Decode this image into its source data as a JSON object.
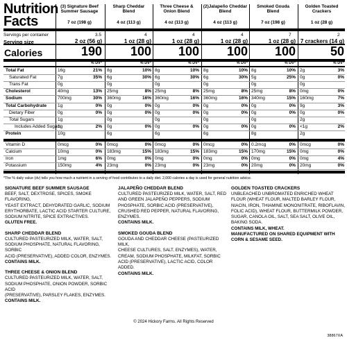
{
  "header": {
    "title": "Nutrition Facts",
    "servings_label": "Servings per container",
    "serving_size_label": "Serving size",
    "dv_label": "% DV*"
  },
  "columns": [
    {
      "name": "(3) Signature Beef Summer Sausage",
      "net": "7 oz (198 g)",
      "servings": "3.5",
      "size": "2 oz (56 g)",
      "calories": "190"
    },
    {
      "name": "Sharp Cheddar Blend",
      "net": "4 oz (113 g)",
      "servings": "4",
      "size": "1 oz (28 g)",
      "calories": "100"
    },
    {
      "name": "Three Cheese & Onion Blend",
      "net": "4 oz (113 g)",
      "servings": "4",
      "size": "1 oz (28 g)",
      "calories": "100"
    },
    {
      "name": "(2)Jalapeño Cheddar Blend",
      "net": "4 oz (113 g)",
      "servings": "4",
      "size": "1 oz (28 g)",
      "calories": "100"
    },
    {
      "name": "Smoked Gouda Blend",
      "net": "7 oz (198 g)",
      "servings": "7",
      "size": "1 oz (28 g)",
      "calories": "100"
    },
    {
      "name": "Golden Toasted Crackers",
      "net": "1 oz (28 g)",
      "servings": "2",
      "size": "7 crackers (14 g)",
      "calories": "50"
    }
  ],
  "calories_label": "Calories",
  "nutrients": [
    {
      "label": "Total Fat",
      "bold": true,
      "vals": [
        [
          "16g",
          "21%"
        ],
        [
          "8g",
          "10%"
        ],
        [
          "8g",
          "10%"
        ],
        [
          "8g",
          "10%"
        ],
        [
          "8g",
          "10%"
        ],
        [
          "2g",
          "3%"
        ]
      ]
    },
    {
      "label": "Saturated Fat",
      "bold": false,
      "vals": [
        [
          "7g",
          "35%"
        ],
        [
          "6g",
          "30%"
        ],
        [
          "6g",
          "30%"
        ],
        [
          "6g",
          "30%"
        ],
        [
          "5g",
          "25%"
        ],
        [
          "0g",
          "0%"
        ]
      ]
    },
    {
      "label": "Trans Fat",
      "bold": false,
      "vals": [
        [
          "0g",
          ""
        ],
        [
          "0g",
          ""
        ],
        [
          "0g",
          ""
        ],
        [
          "0g",
          ""
        ],
        [
          "0g",
          ""
        ],
        [
          "0g",
          ""
        ]
      ]
    },
    {
      "label": "Cholesterol",
      "bold": true,
      "vals": [
        [
          "40mg",
          "13%"
        ],
        [
          "25mg",
          "8%"
        ],
        [
          "25mg",
          "8%"
        ],
        [
          "25mg",
          "8%"
        ],
        [
          "25mg",
          "8%"
        ],
        [
          "0mg",
          "0%"
        ]
      ]
    },
    {
      "label": "Sodium",
      "bold": true,
      "vals": [
        [
          "700mg",
          "30%"
        ],
        [
          "360mg",
          "16%"
        ],
        [
          "360mg",
          "16%"
        ],
        [
          "360mg",
          "16%"
        ],
        [
          "340mg",
          "15%"
        ],
        [
          "160mg",
          "7%"
        ]
      ]
    },
    {
      "label": "Total Carbohydrate",
      "bold": true,
      "vals": [
        [
          "1g",
          "0%"
        ],
        [
          "0g",
          "0%"
        ],
        [
          "0g",
          "0%"
        ],
        [
          "0g",
          "0%"
        ],
        [
          "0g",
          "0%"
        ],
        [
          "9g",
          "3%"
        ]
      ]
    },
    {
      "label": "Dietary Fiber",
      "bold": false,
      "vals": [
        [
          "0g",
          "0%"
        ],
        [
          "0g",
          "0%"
        ],
        [
          "0g",
          "0%"
        ],
        [
          "0g",
          "0%"
        ],
        [
          "0g",
          "0%"
        ],
        [
          "0g",
          "0%"
        ]
      ]
    },
    {
      "label": "Total Sugars",
      "bold": false,
      "vals": [
        [
          "1g",
          ""
        ],
        [
          "0g",
          ""
        ],
        [
          "0g",
          ""
        ],
        [
          "0g",
          ""
        ],
        [
          "0g",
          ""
        ],
        [
          "2g",
          ""
        ]
      ]
    },
    {
      "label": "Includes Added Sugars",
      "bold": false,
      "vals": [
        [
          "1g",
          "2%"
        ],
        [
          "0g",
          "0%"
        ],
        [
          "0g",
          "0%"
        ],
        [
          "0g",
          "0%"
        ],
        [
          "0g",
          "0%"
        ],
        [
          "<1g",
          "2%"
        ]
      ]
    },
    {
      "label": "Protein",
      "bold": true,
      "vals": [
        [
          "10g",
          ""
        ],
        [
          "6g",
          ""
        ],
        [
          "6g",
          ""
        ],
        [
          "6g",
          ""
        ],
        [
          "8g",
          ""
        ],
        [
          "2g",
          ""
        ]
      ]
    },
    {
      "label": "Vitamin D",
      "bold": false,
      "vals": [
        [
          "0mcg",
          "0%"
        ],
        [
          "0mcg",
          "0%"
        ],
        [
          "0mcg",
          "0%"
        ],
        [
          "0mcg",
          "0%"
        ],
        [
          "0.2mcg",
          "0%"
        ],
        [
          "0mcg",
          "0%"
        ]
      ]
    },
    {
      "label": "Calcium",
      "bold": false,
      "vals": [
        [
          "10mg",
          "0%"
        ],
        [
          "183mg",
          "15%"
        ],
        [
          "183mg",
          "15%"
        ],
        [
          "183mg",
          "15%"
        ],
        [
          "170mg",
          "15%"
        ],
        [
          "0mg",
          "0%"
        ]
      ]
    },
    {
      "label": "Iron",
      "bold": false,
      "vals": [
        [
          "1mg",
          "6%"
        ],
        [
          "0mg",
          "0%"
        ],
        [
          "0mg",
          "0%"
        ],
        [
          "0mg",
          "0%"
        ],
        [
          "0mg",
          "0%"
        ],
        [
          "0mg",
          "4%"
        ]
      ]
    },
    {
      "label": "Potassium",
      "bold": false,
      "vals": [
        [
          "150mg",
          "4%"
        ],
        [
          "23mg",
          "0%"
        ],
        [
          "23mg",
          "0%"
        ],
        [
          "23mg",
          "0%"
        ],
        [
          "20mg",
          "0%"
        ],
        [
          "20mg",
          "0%"
        ]
      ]
    }
  ],
  "footnote": "*The % daily value (dv) tells you how much a nutrient in a serving of food contributes to a daily diet. 2,000 calories a day is used for general nutrition advice.",
  "ingredients": {
    "sausage": {
      "title": "SIGNATURE BEEF SUMMER SAUSAGE",
      "lines": [
        "BEEF, SALT, DEXTROSE, SPICES, SMOKE FLAVORING,",
        "YEAST EXTRACT, DEHYDRATED GARLIC, SODIUM",
        "ERYTHORBATE, LACTIC ACID STARTER CULTURE,",
        "SODIUM NITRITE, SPICE EXTRACTIVES."
      ],
      "note": "GLUTEN FREE."
    },
    "sharp": {
      "title": "SHARP CHEDDAR BLEND",
      "lines": [
        "CULTURED PASTEURIZED MILK, WATER, SALT,",
        "SODIUM PHOSPHATE, NATURAL FLAVORING, SORBIC",
        "ACID (PRESERVATIVE), ADDED COLOR, ENZYMES."
      ],
      "note": "CONTAINS MILK."
    },
    "three": {
      "title": "THREE CHEESE & ONION BLEND",
      "lines": [
        "CULTURED PASTEURIZED MILK, WATER, SALT,",
        "SODIUM PHOSPHATE, ONION POWDER, SORBIC ACID",
        "(PRESERVATIVE), PARSLEY FLAKES, ENZYMES."
      ],
      "note": "CONTAINS MILK."
    },
    "jalapeno": {
      "title": "JALAPEÑO CHEDDAR BLEND",
      "lines": [
        "CULTURED PASTEURIZED MILK, WATER, SALT, RED",
        "AND GREEN JALAPEÑO PEPPERS, SODIUM",
        "PHOSPHATE, SORBIC ACID (PRESERVATIVE),",
        "CRUSHED RED PEPPER, NATURAL FLAVORING,",
        "ENZYMES."
      ],
      "note": "CONTAINS MILK."
    },
    "gouda": {
      "title": "SMOKED GOUDA BLEND",
      "lines": [
        "GOUDA AND CHEDDAR CHEESE (PASTEURIZED MILK,",
        "CHEESE CULTURES, SALT, ENZYMES), WATER,",
        "CREAM, SODIUM PHOSPHATE, MILKFAT, SORBIC",
        "ACID (PRESERVATIVE), LACTIC ACID, COLOR ADDED."
      ],
      "note": "CONTAINS MILK."
    },
    "crackers": {
      "title": "GOLDEN TOASTED CRACKERS",
      "lines": [
        "UNBLEACHED UNBROMATED ENRICHED WHEAT",
        "FLOUR (WHEAT FLOUR, MALTED BARLEY FLOUR,",
        "NIACIN, IRON, THIAMINE MONONITRATE, RIBOFLAVIN,",
        "FOLIC ACID), WHEAT FLOUR, BUTTERMILK POWDER,",
        "SUGAR, CANOLA OIL, SALT, SEA SALT, OLIVE OIL,",
        "BAKING SODA."
      ],
      "note": "CONTAINS MILK, WHEAT.",
      "note2": [
        "MANUFACTURED ON SHARED EQUIPMENT WITH",
        "CORN & SESAME SEED."
      ]
    }
  },
  "footer": "© 2024 Hickory Farms. All Rights Reserved",
  "code": "38867XA"
}
